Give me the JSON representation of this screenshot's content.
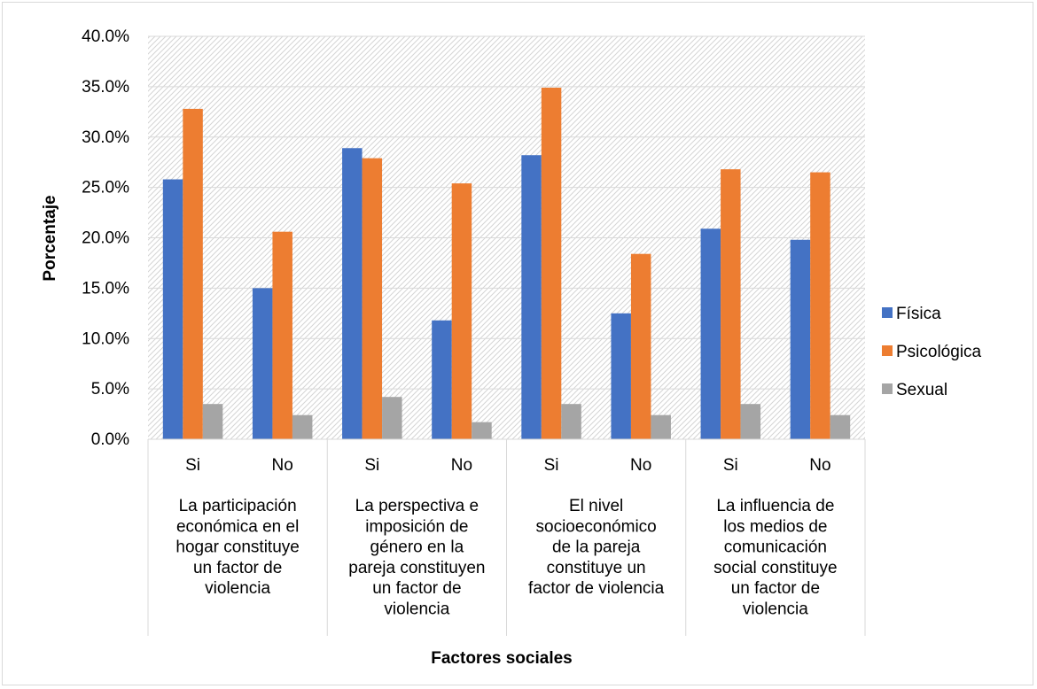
{
  "chart_data": {
    "type": "bar",
    "groups": [
      {
        "label": "La participación económica en el hogar constituye un factor de violencia",
        "lines": [
          "La participación",
          "económica en el",
          "hogar constituye",
          "un factor de",
          "violencia"
        ],
        "categories": [
          "Si",
          "No"
        ]
      },
      {
        "label": "La perspectiva e imposición de género en la pareja constituyen un factor de violencia",
        "lines": [
          "La perspectiva e",
          "imposición de",
          "género en la",
          "pareja constituyen",
          "un factor de",
          "violencia"
        ],
        "categories": [
          "Si",
          "No"
        ]
      },
      {
        "label": "El nivel socioeconómico de la pareja constituye un factor de violencia",
        "lines": [
          "El nivel",
          "socioeconómico",
          "de la pareja",
          "constituye un",
          "factor de violencia"
        ],
        "categories": [
          "Si",
          "No"
        ]
      },
      {
        "label": "La influencia de los medios de comunicación social constituye un factor de violencia",
        "lines": [
          "La influencia de",
          "los medios de",
          "comunicación",
          "social constituye",
          "un factor de",
          "violencia"
        ],
        "categories": [
          "Si",
          "No"
        ]
      }
    ],
    "categories": [
      "Si",
      "No",
      "Si",
      "No",
      "Si",
      "No",
      "Si",
      "No"
    ],
    "series": [
      {
        "name": "Física",
        "color": "#4472c4",
        "values": [
          25.8,
          15.0,
          28.9,
          11.8,
          28.2,
          12.5,
          20.9,
          19.8
        ]
      },
      {
        "name": "Psicológica",
        "color": "#ed7d31",
        "values": [
          32.8,
          20.6,
          27.9,
          25.4,
          34.9,
          18.4,
          26.8,
          26.5
        ]
      },
      {
        "name": "Sexual",
        "color": "#a5a5a5",
        "values": [
          3.5,
          2.4,
          4.2,
          1.7,
          3.5,
          2.4,
          3.5,
          2.4
        ]
      }
    ],
    "yticks": [
      "0.0%",
      "5.0%",
      "10.0%",
      "15.0%",
      "20.0%",
      "25.0%",
      "30.0%",
      "35.0%",
      "40.0%"
    ],
    "ylim": [
      0,
      40
    ],
    "xlabel": "Factores sociales",
    "ylabel": "Porcentaje",
    "legend_position": "right",
    "grid": true,
    "plot_background": "hatched"
  }
}
